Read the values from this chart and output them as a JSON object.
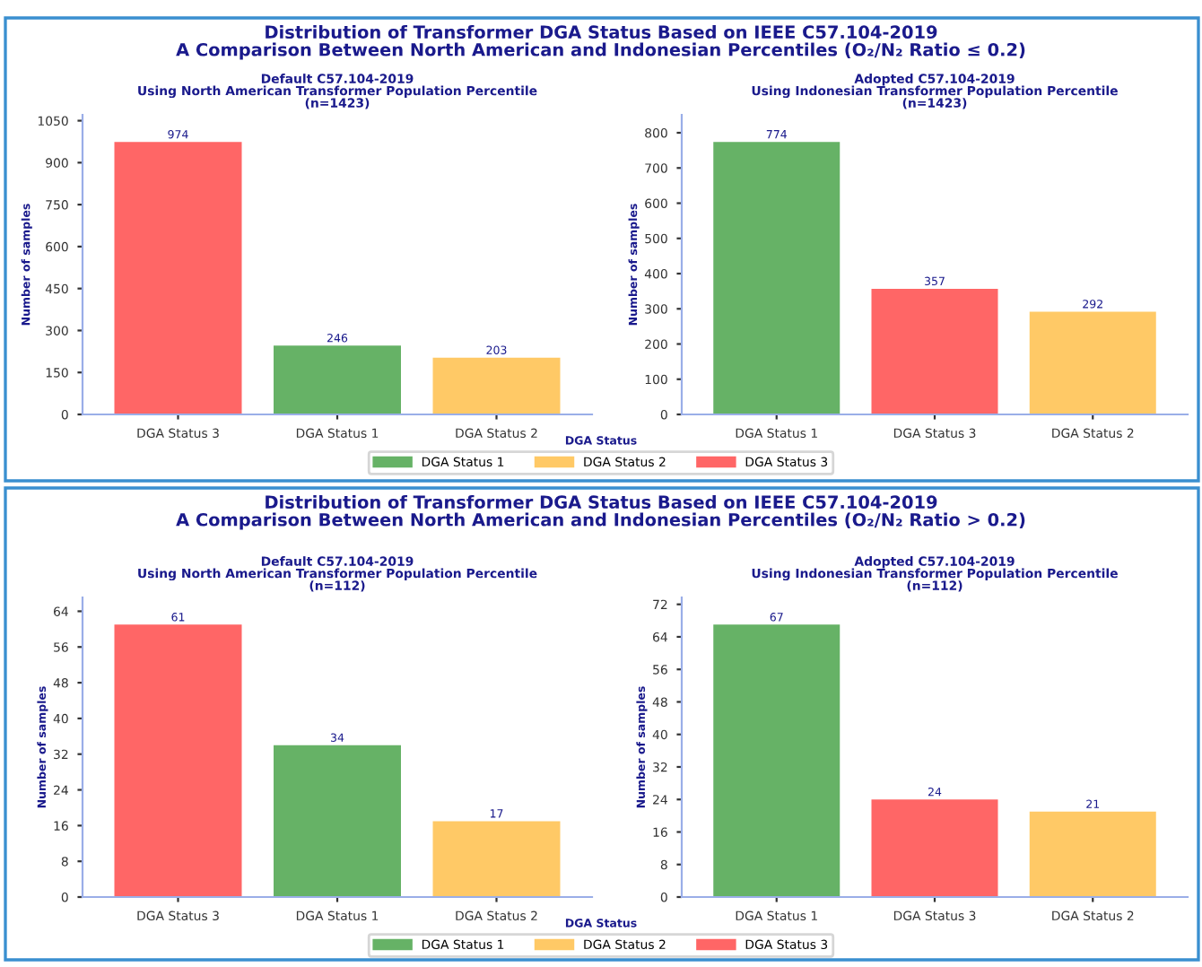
{
  "chart_data": [
    {
      "type": "bar",
      "title": "Distribution of Transformer DGA Status Based on IEEE C57.104-2019\nA Comparison Between North American and Indonesian Percentiles (O₂/N₂ Ratio ≤ 0.2)",
      "subtitle": "Default C57.104-2019\nUsing North American Transformer Population Percentile\n(n=1423)",
      "xlabel": "DGA Status",
      "ylabel": "Number of samples",
      "categories": [
        "DGA Status 3",
        "DGA Status 1",
        "DGA Status 2"
      ],
      "series": [
        {
          "name": "DGA Status 1",
          "color": "#66b266",
          "values": [
            null,
            246,
            null
          ]
        },
        {
          "name": "DGA Status 2",
          "color": "#ffc966",
          "values": [
            null,
            null,
            203
          ]
        },
        {
          "name": "DGA Status 3",
          "color": "#ff6666",
          "values": [
            974,
            null,
            null
          ]
        }
      ],
      "ylim": [
        0,
        1071
      ],
      "yticks": [
        0,
        150,
        300,
        450,
        600,
        750,
        900,
        1050
      ],
      "data_labels": true,
      "legend": "bottom"
    },
    {
      "type": "bar",
      "subtitle": "Adopted C57.104-2019\nUsing Indonesian Transformer Population Percentile\n(n=1423)",
      "ylabel": "Number of samples",
      "categories": [
        "DGA Status 1",
        "DGA Status 3",
        "DGA Status 2"
      ],
      "series": [
        {
          "color": "#66b266",
          "values": [
            774,
            null,
            null
          ]
        },
        {
          "color": "#ffc966",
          "values": [
            null,
            null,
            292
          ]
        },
        {
          "color": "#ff6666",
          "values": [
            null,
            357,
            null
          ]
        }
      ],
      "ylim": [
        0,
        851
      ],
      "yticks": [
        0,
        100,
        200,
        300,
        400,
        500,
        600,
        700,
        800
      ],
      "data_labels": true
    },
    {
      "type": "bar",
      "title": "Distribution of Transformer DGA Status Based on IEEE C57.104-2019\nA Comparison Between North American and Indonesian Percentiles (O₂/N₂ Ratio > 0.2)",
      "subtitle": "Default C57.104-2019\nUsing North American Transformer Population Percentile\n(n=112)",
      "xlabel": "DGA Status",
      "ylabel": "Number of samples",
      "categories": [
        "DGA Status 3",
        "DGA Status 1",
        "DGA Status 2"
      ],
      "series": [
        {
          "name": "DGA Status 1",
          "color": "#66b266",
          "values": [
            null,
            34,
            null
          ]
        },
        {
          "name": "DGA Status 2",
          "color": "#ffc966",
          "values": [
            null,
            null,
            17
          ]
        },
        {
          "name": "DGA Status 3",
          "color": "#ff6666",
          "values": [
            61,
            null,
            null
          ]
        }
      ],
      "ylim": [
        0,
        67.1
      ],
      "yticks": [
        0,
        8,
        16,
        24,
        32,
        40,
        48,
        56,
        64
      ],
      "data_labels": true,
      "legend": "bottom"
    },
    {
      "type": "bar",
      "subtitle": "Adopted C57.104-2019\nUsing Indonesian Transformer Population Percentile\n(n=112)",
      "ylabel": "Number of samples",
      "categories": [
        "DGA Status 1",
        "DGA Status 3",
        "DGA Status 2"
      ],
      "series": [
        {
          "color": "#66b266",
          "values": [
            67,
            null,
            null
          ]
        },
        {
          "color": "#ffc966",
          "values": [
            null,
            null,
            21
          ]
        },
        {
          "color": "#ff6666",
          "values": [
            null,
            24,
            null
          ]
        }
      ],
      "ylim": [
        0,
        73.7
      ],
      "yticks": [
        0,
        8,
        16,
        24,
        32,
        40,
        48,
        56,
        64,
        72
      ],
      "data_labels": true
    }
  ]
}
